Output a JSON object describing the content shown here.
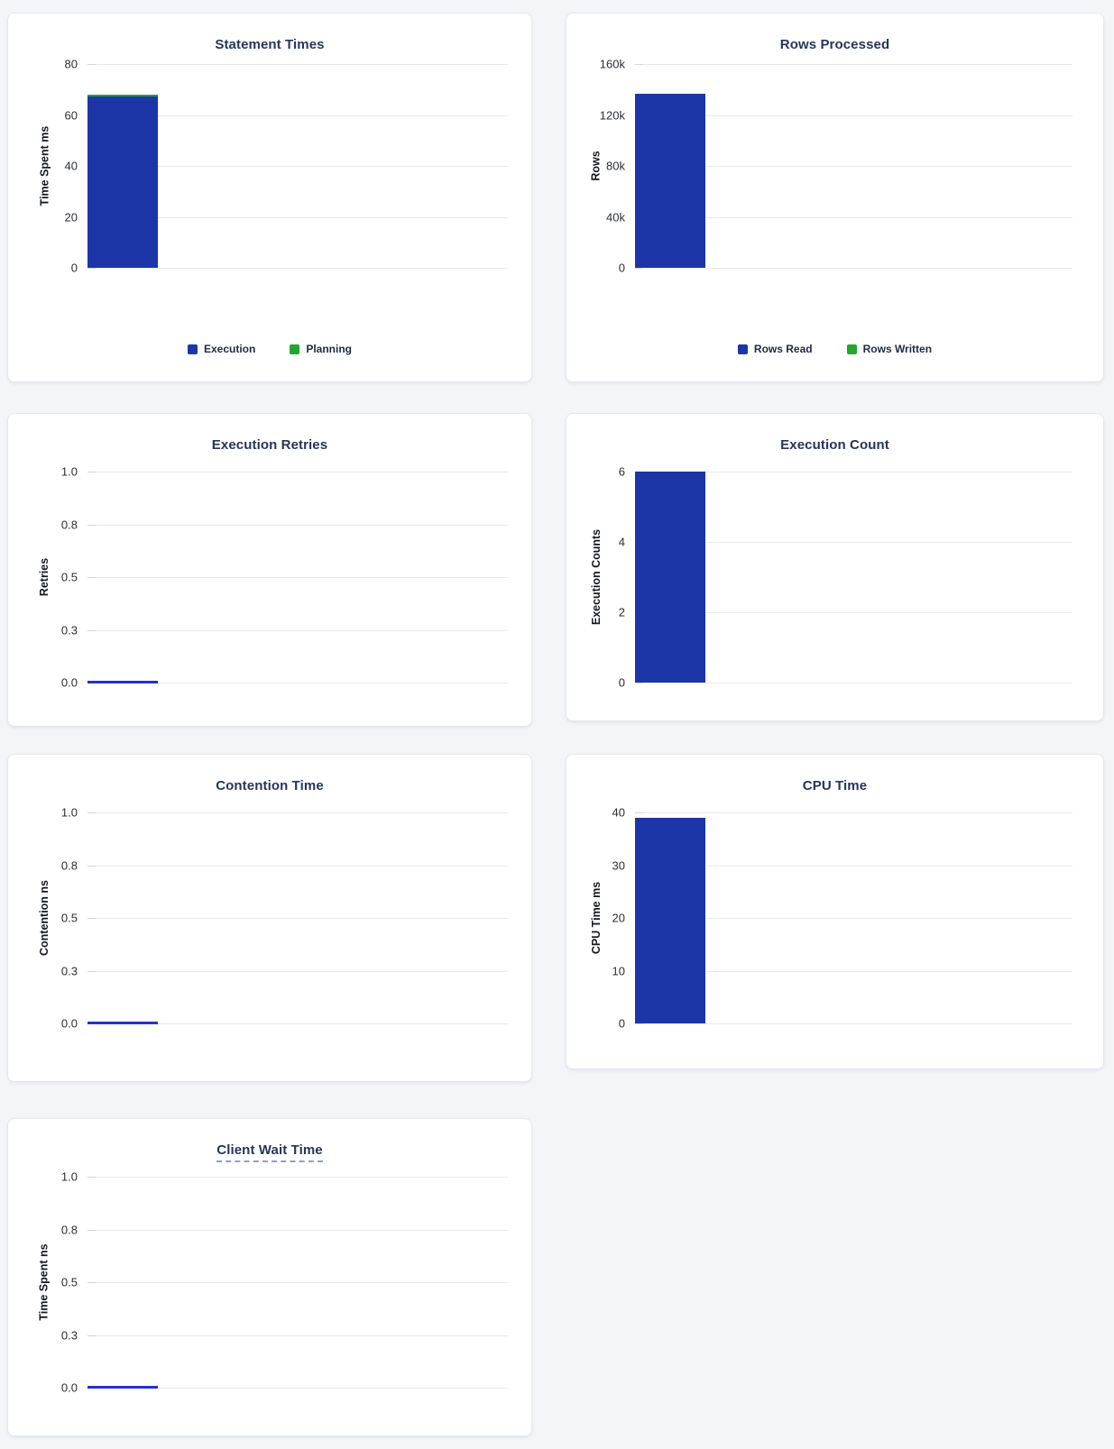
{
  "colors": {
    "page_background": "#f3f5f9",
    "card_background": "#ffffff",
    "card_border": "#e4e7ed",
    "title_text": "#26355b",
    "axis_tick_text": "#2b2f36",
    "axis_label_text": "#15191f",
    "gridline": "#e8e9ec",
    "bar_blue": "#1c36a8",
    "bar_green": "#23a52e",
    "zero_value_line": "#2531cd"
  },
  "chart_data": [
    {
      "type": "bar",
      "title": "Statement Times",
      "ylabel": "Time Spent ms",
      "ylim": [
        0,
        80
      ],
      "ytick_labels_top_to_bottom": [
        "80",
        "60",
        "40",
        "20",
        "0"
      ],
      "stacked": true,
      "grid": "horizontal",
      "series": [
        {
          "name": "Execution",
          "values": [
            67.3
          ],
          "color": "#1c36a8"
        },
        {
          "name": "Planning",
          "values": [
            0.8
          ],
          "color": "#23a52e"
        }
      ],
      "legend": {
        "position": "bottom",
        "items": [
          {
            "label": "Execution",
            "color": "#1c36a8"
          },
          {
            "label": "Planning",
            "color": "#23a52e"
          }
        ]
      }
    },
    {
      "type": "bar",
      "title": "Rows Processed",
      "ylabel": "Rows",
      "ylim": [
        0,
        160000
      ],
      "ytick_labels_top_to_bottom": [
        "160k",
        "120k",
        "80k",
        "40k",
        "0"
      ],
      "stacked": true,
      "grid": "horizontal",
      "series": [
        {
          "name": "Rows Read",
          "values": [
            137000
          ],
          "color": "#1c36a8"
        },
        {
          "name": "Rows Written",
          "values": [
            0
          ],
          "color": "#23a52e"
        }
      ],
      "legend": {
        "position": "bottom",
        "items": [
          {
            "label": "Rows Read",
            "color": "#1c36a8"
          },
          {
            "label": "Rows Written",
            "color": "#23a52e"
          }
        ]
      }
    },
    {
      "type": "bar",
      "title": "Execution Retries",
      "ylabel": "Retries",
      "ylim": [
        0,
        1
      ],
      "ytick_labels_top_to_bottom": [
        "1.0",
        "0.8",
        "0.5",
        "0.3",
        "0.0"
      ],
      "stacked": false,
      "grid": "horizontal",
      "series": [
        {
          "name": "Retries",
          "values": [
            0
          ],
          "color": "#1c36a8"
        }
      ],
      "legend": null
    },
    {
      "type": "bar",
      "title": "Execution Count",
      "ylabel": "Execution Counts",
      "ylim": [
        0,
        6
      ],
      "ytick_labels_top_to_bottom": [
        "6",
        "4",
        "2",
        "0"
      ],
      "stacked": false,
      "grid": "horizontal",
      "series": [
        {
          "name": "Execution Counts",
          "values": [
            6
          ],
          "color": "#1c36a8"
        }
      ],
      "legend": null
    },
    {
      "type": "bar",
      "title": "Contention Time",
      "ylabel": "Contention ns",
      "ylim": [
        0,
        1
      ],
      "ytick_labels_top_to_bottom": [
        "1.0",
        "0.8",
        "0.5",
        "0.3",
        "0.0"
      ],
      "stacked": false,
      "grid": "horizontal",
      "series": [
        {
          "name": "Contention",
          "values": [
            0
          ],
          "color": "#1c36a8"
        }
      ],
      "legend": null
    },
    {
      "type": "bar",
      "title": "CPU Time",
      "ylabel": "CPU Time ms",
      "ylim": [
        0,
        40
      ],
      "ytick_labels_top_to_bottom": [
        "40",
        "30",
        "20",
        "10",
        "0"
      ],
      "stacked": false,
      "grid": "horizontal",
      "series": [
        {
          "name": "CPU Time",
          "values": [
            39
          ],
          "color": "#1c36a8"
        }
      ],
      "legend": null
    },
    {
      "type": "bar",
      "title": "Client Wait Time",
      "title_tooltip_underline": true,
      "ylabel": "Time Spent ns",
      "ylim": [
        0,
        1
      ],
      "ytick_labels_top_to_bottom": [
        "1.0",
        "0.8",
        "0.5",
        "0.3",
        "0.0"
      ],
      "stacked": false,
      "grid": "horizontal",
      "series": [
        {
          "name": "Time Spent",
          "values": [
            0
          ],
          "color": "#1c36a8"
        }
      ],
      "legend": null
    }
  ]
}
